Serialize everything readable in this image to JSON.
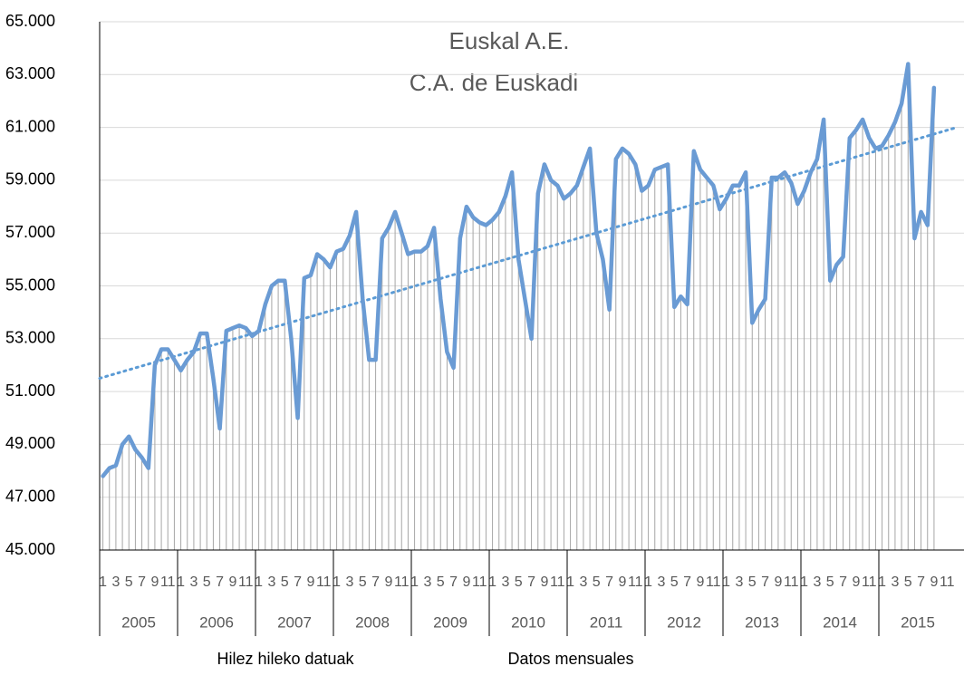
{
  "chart_data": {
    "type": "line",
    "title": [
      "Euskal A.E.",
      "C.A. de Euskadi"
    ],
    "footer": [
      "Hilez hileko datuak",
      "Datos mensuales"
    ],
    "years": [
      "2005",
      "2006",
      "2007",
      "2008",
      "2009",
      "2010",
      "2011",
      "2012",
      "2013",
      "2014",
      "2015"
    ],
    "categories": [
      "1",
      null,
      "3",
      null,
      "5",
      null,
      "7",
      null,
      "9",
      null,
      "11",
      null,
      "1",
      null,
      "3",
      null,
      "5",
      null,
      "7",
      null,
      "9",
      null,
      "11",
      null,
      "1",
      null,
      "3",
      null,
      "5",
      null,
      "7",
      null,
      "9",
      null,
      "11",
      null,
      "1",
      null,
      "3",
      null,
      "5",
      null,
      "7",
      null,
      "9",
      null,
      "11",
      null,
      "1",
      null,
      "3",
      null,
      "5",
      null,
      "7",
      null,
      "9",
      null,
      "11",
      null,
      "1",
      null,
      "3",
      null,
      "5",
      null,
      "7",
      null,
      "9",
      null,
      "11",
      null,
      "1",
      null,
      "3",
      null,
      "5",
      null,
      "7",
      null,
      "9",
      null,
      "11",
      null,
      "1",
      null,
      "3",
      null,
      "5",
      null,
      "7",
      null,
      "9",
      null,
      "11",
      null,
      "1",
      null,
      "3",
      null,
      "5",
      null,
      "7",
      null,
      "9",
      null,
      "11",
      null,
      "1",
      null,
      "3",
      null,
      "5",
      null,
      "7",
      null,
      "9",
      null,
      "11",
      null,
      "1",
      null,
      "3",
      null,
      "5",
      null,
      "7",
      null,
      "9",
      null,
      "11",
      null
    ],
    "series": [
      {
        "color": "#6a9bd4",
        "values": [
          47800,
          48100,
          48200,
          49000,
          49300,
          48800,
          48500,
          48100,
          52000,
          52600,
          52600,
          52200,
          51800,
          52200,
          52500,
          53200,
          53200,
          51500,
          49600,
          53300,
          53400,
          53500,
          53400,
          53100,
          53300,
          54300,
          55000,
          55200,
          55200,
          53000,
          50000,
          55300,
          55400,
          56200,
          56000,
          55700,
          56300,
          56400,
          56900,
          57800,
          54500,
          52200,
          52200,
          56800,
          57200,
          57800,
          57000,
          56200,
          56300,
          56300,
          56500,
          57200,
          54500,
          52500,
          51900,
          56800,
          58000,
          57600,
          57400,
          57300,
          57500,
          57800,
          58400,
          59300,
          56000,
          54500,
          53000,
          58500,
          59600,
          59000,
          58800,
          58300,
          58500,
          58800,
          59500,
          60200,
          57000,
          56000,
          54100,
          59800,
          60200,
          60000,
          59600,
          58600,
          58800,
          59400,
          59500,
          59600,
          54200,
          54600,
          54300,
          60100,
          59400,
          59100,
          58800,
          57900,
          58300,
          58800,
          58800,
          59300,
          53600,
          54100,
          54500,
          59100,
          59100,
          59300,
          58900,
          58100,
          58600,
          59300,
          59800,
          61300,
          55200,
          55800,
          56100,
          60600,
          60900,
          61300,
          60600,
          60200,
          60300,
          60700,
          61200,
          61900,
          63400,
          56800,
          57800,
          57300,
          62500,
          null,
          null,
          null
        ]
      }
    ],
    "trend": {
      "color": "#5b9bd5",
      "values": [
        51500,
        61000
      ]
    },
    "drop_line_color": "#a6a6a6",
    "ylim": [
      45000,
      65000
    ],
    "yticks": [
      {
        "value": 45000,
        "label": "45.000"
      },
      {
        "value": 47000,
        "label": "47.000"
      },
      {
        "value": 49000,
        "label": "49.000"
      },
      {
        "value": 51000,
        "label": "51.000"
      },
      {
        "value": 53000,
        "label": "53.000"
      },
      {
        "value": 55000,
        "label": "55.000"
      },
      {
        "value": 57000,
        "label": "57.000"
      },
      {
        "value": 59000,
        "label": "59.000"
      },
      {
        "value": 61000,
        "label": "61.000"
      },
      {
        "value": 63000,
        "label": "63.000"
      },
      {
        "value": 65000,
        "label": "65.000"
      }
    ],
    "grid": true
  }
}
